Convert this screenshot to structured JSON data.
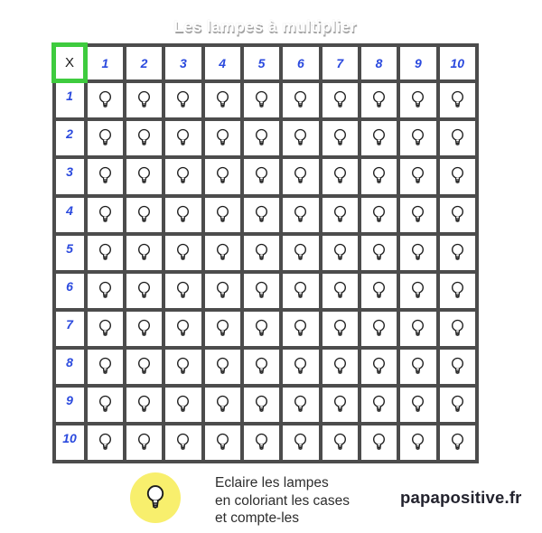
{
  "title": "Les lampes à multiplier",
  "grid": {
    "corner_label": "X",
    "column_headers": [
      "1",
      "2",
      "3",
      "4",
      "5",
      "6",
      "7",
      "8",
      "9",
      "10"
    ],
    "row_headers": [
      "1",
      "2",
      "3",
      "4",
      "5",
      "6",
      "7",
      "8",
      "9",
      "10"
    ],
    "cell_icon": "lamp-icon"
  },
  "legend": {
    "icon": "lamp-icon",
    "instructions": [
      "Eclaire les lampes",
      "en coloriant les cases",
      "et compte-les"
    ]
  },
  "credit": "papapositive.fr",
  "colors": {
    "grid_border": "#4c4c4c",
    "corner_border": "#3ecb3e",
    "header_text": "#2b4ade",
    "legend_circle": "#f8ef6d",
    "bulb_stroke": "#1c1c1c",
    "title_shadow": "#a3a3a3"
  }
}
